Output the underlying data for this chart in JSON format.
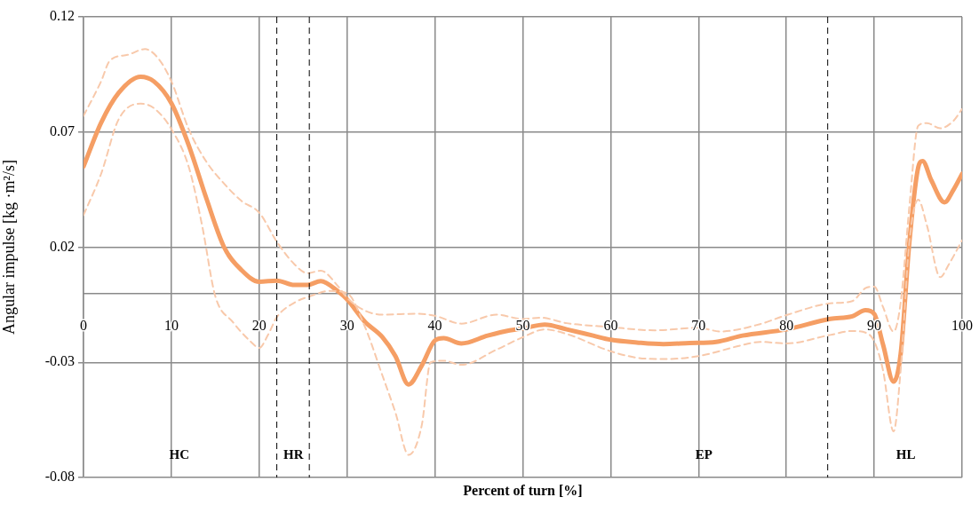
{
  "chart_data": {
    "type": "line",
    "xlabel": "Percent of turn [%]",
    "ylabel": "Angular impulse [kg ·m²/s]",
    "xlim": [
      0,
      100
    ],
    "xticks": [
      0,
      10,
      20,
      30,
      40,
      50,
      60,
      70,
      80,
      90,
      100
    ],
    "ylim": [
      -0.08,
      0.12
    ],
    "yticks": [
      0.12,
      0.07,
      0.02,
      -0.03,
      -0.08
    ],
    "grid": true,
    "legend": false,
    "marker": "none",
    "series": [
      {
        "color": "#f59e64",
        "line_style": "solid",
        "x": [
          0,
          2,
          4,
          6.5,
          8,
          10,
          12,
          14,
          16,
          18,
          20,
          22,
          24,
          25.5,
          27,
          29,
          30,
          32,
          34,
          35.5,
          37,
          38.5,
          40,
          41,
          43,
          46,
          48.5,
          50,
          52.5,
          55,
          58,
          60,
          63,
          66,
          69,
          72,
          75,
          80,
          85,
          87.5,
          89,
          90,
          91,
          92.2,
          93,
          94,
          95,
          95.5,
          96.5,
          98,
          99,
          100
        ],
        "values": [
          0.055,
          0.074,
          0.087,
          0.094,
          0.092,
          0.0825,
          0.064,
          0.041,
          0.02,
          0.01,
          0.005,
          0.0055,
          0.0036,
          0.0036,
          0.0053,
          0.0007,
          -0.0027,
          -0.0123,
          -0.019,
          -0.0273,
          -0.0396,
          -0.0314,
          -0.0205,
          -0.0195,
          -0.0218,
          -0.0184,
          -0.0161,
          -0.0153,
          -0.0136,
          -0.0157,
          -0.0184,
          -0.0202,
          -0.0214,
          -0.0221,
          -0.0216,
          -0.0211,
          -0.0184,
          -0.0157,
          -0.0111,
          -0.01,
          -0.0074,
          -0.009,
          -0.0223,
          -0.0384,
          -0.0265,
          0.0223,
          0.0546,
          0.0574,
          0.049,
          0.0395,
          0.0448,
          0.0518
        ]
      },
      {
        "color": "#f8c9ab",
        "line_style": "dashed",
        "x": [
          0,
          2,
          3,
          5,
          7,
          8.5,
          10,
          12,
          14,
          16,
          18,
          20,
          22,
          24,
          25.5,
          27,
          29,
          30,
          32,
          34,
          38,
          40,
          43,
          47,
          50,
          52,
          55,
          60,
          65,
          70,
          72.5,
          77,
          80,
          85,
          87.5,
          89,
          90,
          91,
          92.2,
          93,
          94,
          95,
          96,
          97.5,
          99,
          100
        ],
        "values": [
          0.077,
          0.092,
          0.101,
          0.1035,
          0.106,
          0.102,
          0.092,
          0.071,
          0.057,
          0.0476,
          0.04,
          0.035,
          0.0224,
          0.0126,
          0.0087,
          0.0098,
          0.0029,
          -0.002,
          -0.0075,
          -0.0093,
          -0.0089,
          -0.0098,
          -0.0132,
          -0.0093,
          -0.0112,
          -0.0106,
          -0.013,
          -0.0147,
          -0.0161,
          -0.015,
          -0.0166,
          -0.0134,
          -0.0095,
          -0.0044,
          -0.0034,
          0.0022,
          0.0029,
          -0.006,
          -0.0167,
          -0.0042,
          0.0378,
          0.0727,
          0.0739,
          0.0716,
          0.0748,
          0.08
        ]
      },
      {
        "color": "#f8c9ab",
        "line_style": "dashed",
        "x": [
          0,
          2,
          4,
          6.5,
          8,
          10,
          12,
          13.5,
          15,
          17,
          19,
          20,
          21,
          22,
          24,
          26,
          28,
          30,
          32,
          34,
          35.5,
          37,
          38.5,
          39.5,
          41,
          43,
          47,
          50,
          52.5,
          55,
          60,
          63,
          66,
          70,
          75,
          77,
          80,
          85,
          87.5,
          89,
          90,
          91,
          92.2,
          93,
          94,
          95,
          96,
          97.5,
          98.5,
          100
        ],
        "values": [
          0.0339,
          0.0518,
          0.0755,
          0.0823,
          0.0804,
          0.0713,
          0.0546,
          0.0294,
          -0.0013,
          -0.0125,
          -0.0209,
          -0.0237,
          -0.0181,
          -0.0104,
          -0.0041,
          -0.001,
          0.001,
          0,
          -0.0143,
          -0.0355,
          -0.0518,
          -0.0702,
          -0.0573,
          -0.03,
          -0.0293,
          -0.0311,
          -0.0245,
          -0.0191,
          -0.0157,
          -0.0177,
          -0.0252,
          -0.028,
          -0.0286,
          -0.0273,
          -0.0225,
          -0.0211,
          -0.0218,
          -0.0181,
          -0.0164,
          -0.0171,
          -0.0209,
          -0.0335,
          -0.06,
          -0.0335,
          0.0223,
          0.0406,
          0.0294,
          0.007,
          0.0126,
          0.023
        ]
      }
    ],
    "ref_lines": [
      {
        "axis": "x",
        "value": 22,
        "color": "#000000",
        "line_style": "dashed"
      },
      {
        "axis": "x",
        "value": 25.7,
        "color": "#000000",
        "line_style": "dashed"
      },
      {
        "axis": "x",
        "value": 84.7,
        "color": "#000000",
        "line_style": "dashed"
      }
    ],
    "annotations": [
      "HC",
      "HR",
      "EP",
      "HL"
    ]
  }
}
